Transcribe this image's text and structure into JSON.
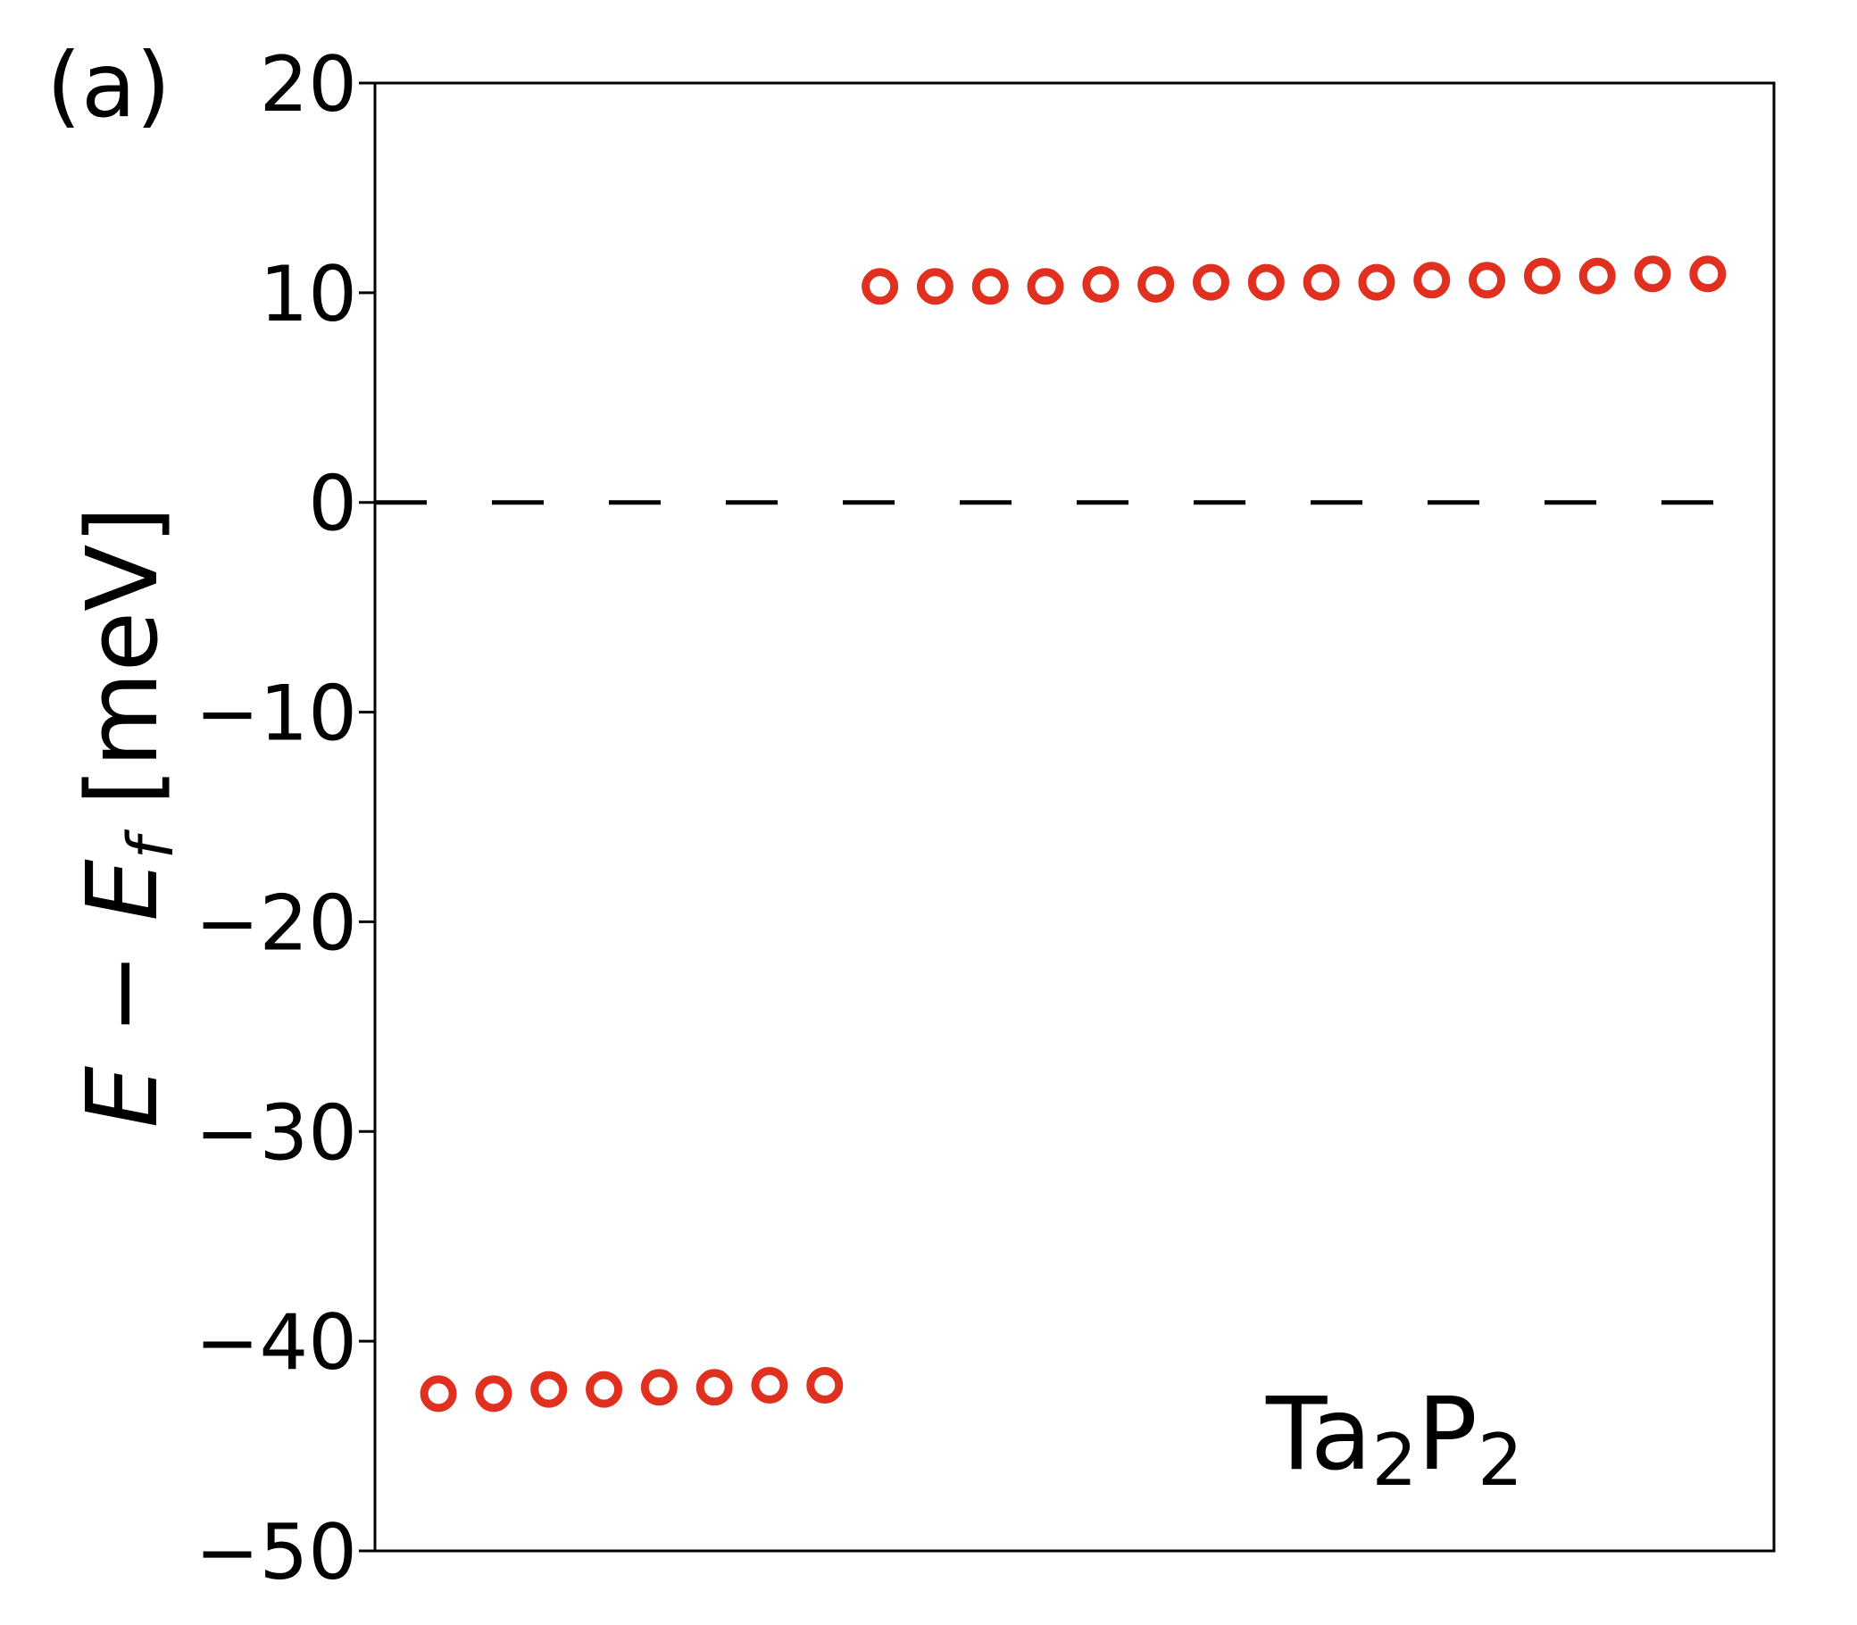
{
  "panel_label": "(a)",
  "chart_data": {
    "type": "scatter",
    "title": "",
    "xlabel": "",
    "ylabel": {
      "parts": [
        {
          "text": "E",
          "style": "italic"
        },
        {
          "text": " − ",
          "style": "normal"
        },
        {
          "text": "E",
          "style": "italic"
        },
        {
          "text": "f",
          "style": "italic-sub"
        },
        {
          "text": " [meV]",
          "style": "normal"
        }
      ]
    },
    "ylim": [
      -50,
      20
    ],
    "yticks": [
      20,
      10,
      0,
      -10,
      -20,
      -30,
      -40,
      -50
    ],
    "ytick_labels": [
      "20",
      "10",
      "0",
      "−10",
      "−20",
      "−30",
      "−40",
      "−50"
    ],
    "grid": false,
    "x_axis_ticks": false,
    "fermi_line": {
      "y": 0,
      "style": "dashed",
      "color": "#000000"
    },
    "series": [
      {
        "marker": "open-circle",
        "color": "#e03020",
        "points": [
          {
            "x": 1,
            "y": -42.5
          },
          {
            "x": 2,
            "y": -42.5
          },
          {
            "x": 3,
            "y": -42.3
          },
          {
            "x": 4,
            "y": -42.3
          },
          {
            "x": 5,
            "y": -42.2
          },
          {
            "x": 6,
            "y": -42.2
          },
          {
            "x": 7,
            "y": -42.1
          },
          {
            "x": 8,
            "y": -42.1
          },
          {
            "x": 9,
            "y": 10.3
          },
          {
            "x": 10,
            "y": 10.3
          },
          {
            "x": 11,
            "y": 10.3
          },
          {
            "x": 12,
            "y": 10.3
          },
          {
            "x": 13,
            "y": 10.4
          },
          {
            "x": 14,
            "y": 10.4
          },
          {
            "x": 15,
            "y": 10.5
          },
          {
            "x": 16,
            "y": 10.5
          },
          {
            "x": 17,
            "y": 10.5
          },
          {
            "x": 18,
            "y": 10.5
          },
          {
            "x": 19,
            "y": 10.6
          },
          {
            "x": 20,
            "y": 10.6
          },
          {
            "x": 21,
            "y": 10.8
          },
          {
            "x": 22,
            "y": 10.8
          },
          {
            "x": 23,
            "y": 10.9
          },
          {
            "x": 24,
            "y": 10.9
          }
        ]
      }
    ],
    "xlim": [
      -0.15,
      25.2
    ],
    "annotation": {
      "parts": [
        {
          "text": "Ta",
          "style": "normal"
        },
        {
          "text": "2",
          "style": "sub"
        },
        {
          "text": "P",
          "style": "normal"
        },
        {
          "text": "2",
          "style": "sub"
        }
      ],
      "position": "bottom-right"
    }
  }
}
